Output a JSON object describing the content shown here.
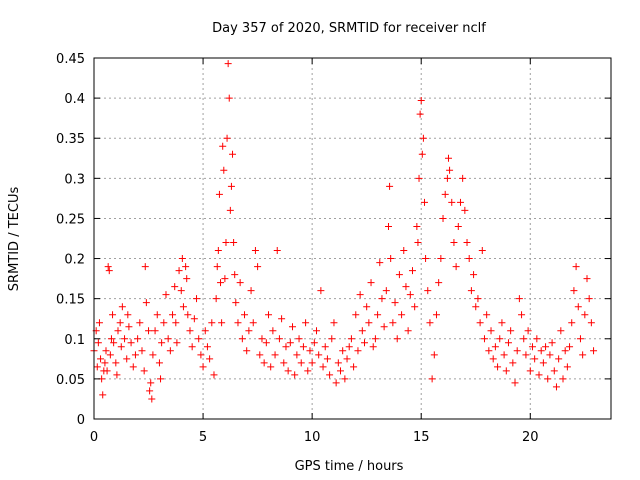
{
  "chart_data": {
    "type": "scatter",
    "title": "Day 357 of 2020, SRMTID for receiver nclf",
    "xlabel": "GPS time / hours",
    "ylabel": "SRMTID / TECUs",
    "xlim": [
      0,
      23.7
    ],
    "ylim": [
      0,
      0.45
    ],
    "xticks": [
      0,
      5,
      10,
      15,
      20
    ],
    "xtick_labels": [
      "0",
      "5",
      "10",
      "15",
      "20"
    ],
    "yticks": [
      0,
      0.05,
      0.1,
      0.15,
      0.2,
      0.25,
      0.3,
      0.35,
      0.4,
      0.45
    ],
    "ytick_labels": [
      "0",
      "0.05",
      "0.1",
      "0.15",
      "0.2",
      "0.25",
      "0.3",
      "0.35",
      "0.4",
      "0.45"
    ],
    "grid": true,
    "marker": "+",
    "color": "#ff0000",
    "series": [
      {
        "name": "SRMTID",
        "points": [
          [
            0.0,
            0.085
          ],
          [
            0.1,
            0.11
          ],
          [
            0.15,
            0.065
          ],
          [
            0.2,
            0.095
          ],
          [
            0.25,
            0.12
          ],
          [
            0.3,
            0.075
          ],
          [
            0.35,
            0.05
          ],
          [
            0.4,
            0.03
          ],
          [
            0.45,
            0.06
          ],
          [
            0.5,
            0.07
          ],
          [
            0.55,
            0.085
          ],
          [
            0.6,
            0.06
          ],
          [
            0.65,
            0.19
          ],
          [
            0.7,
            0.185
          ],
          [
            0.75,
            0.08
          ],
          [
            0.8,
            0.1
          ],
          [
            0.85,
            0.13
          ],
          [
            0.9,
            0.095
          ],
          [
            1.0,
            0.07
          ],
          [
            1.05,
            0.055
          ],
          [
            1.1,
            0.11
          ],
          [
            1.2,
            0.12
          ],
          [
            1.25,
            0.09
          ],
          [
            1.3,
            0.14
          ],
          [
            1.4,
            0.1
          ],
          [
            1.5,
            0.075
          ],
          [
            1.55,
            0.13
          ],
          [
            1.6,
            0.115
          ],
          [
            1.7,
            0.095
          ],
          [
            1.8,
            0.065
          ],
          [
            1.9,
            0.08
          ],
          [
            2.0,
            0.1
          ],
          [
            2.1,
            0.12
          ],
          [
            2.2,
            0.085
          ],
          [
            2.3,
            0.06
          ],
          [
            2.35,
            0.19
          ],
          [
            2.4,
            0.145
          ],
          [
            2.5,
            0.11
          ],
          [
            2.55,
            0.035
          ],
          [
            2.6,
            0.045
          ],
          [
            2.65,
            0.025
          ],
          [
            2.7,
            0.08
          ],
          [
            2.8,
            0.11
          ],
          [
            2.9,
            0.13
          ],
          [
            3.0,
            0.07
          ],
          [
            3.05,
            0.05
          ],
          [
            3.1,
            0.095
          ],
          [
            3.2,
            0.12
          ],
          [
            3.3,
            0.155
          ],
          [
            3.4,
            0.1
          ],
          [
            3.5,
            0.085
          ],
          [
            3.6,
            0.13
          ],
          [
            3.7,
            0.165
          ],
          [
            3.75,
            0.12
          ],
          [
            3.8,
            0.095
          ],
          [
            3.9,
            0.185
          ],
          [
            4.0,
            0.16
          ],
          [
            4.05,
            0.2
          ],
          [
            4.1,
            0.14
          ],
          [
            4.2,
            0.19
          ],
          [
            4.25,
            0.175
          ],
          [
            4.3,
            0.13
          ],
          [
            4.4,
            0.11
          ],
          [
            4.5,
            0.09
          ],
          [
            4.6,
            0.125
          ],
          [
            4.7,
            0.15
          ],
          [
            4.8,
            0.1
          ],
          [
            4.9,
            0.08
          ],
          [
            5.0,
            0.065
          ],
          [
            5.1,
            0.11
          ],
          [
            5.2,
            0.09
          ],
          [
            5.3,
            0.075
          ],
          [
            5.4,
            0.12
          ],
          [
            5.5,
            0.055
          ],
          [
            5.6,
            0.15
          ],
          [
            5.65,
            0.19
          ],
          [
            5.7,
            0.21
          ],
          [
            5.75,
            0.28
          ],
          [
            5.8,
            0.17
          ],
          [
            5.85,
            0.12
          ],
          [
            5.9,
            0.34
          ],
          [
            5.95,
            0.31
          ],
          [
            6.0,
            0.175
          ],
          [
            6.05,
            0.22
          ],
          [
            6.1,
            0.35
          ],
          [
            6.15,
            0.443
          ],
          [
            6.2,
            0.4
          ],
          [
            6.25,
            0.26
          ],
          [
            6.3,
            0.29
          ],
          [
            6.35,
            0.33
          ],
          [
            6.4,
            0.22
          ],
          [
            6.45,
            0.18
          ],
          [
            6.5,
            0.145
          ],
          [
            6.6,
            0.12
          ],
          [
            6.7,
            0.17
          ],
          [
            6.8,
            0.1
          ],
          [
            6.9,
            0.13
          ],
          [
            7.0,
            0.085
          ],
          [
            7.1,
            0.11
          ],
          [
            7.2,
            0.16
          ],
          [
            7.3,
            0.12
          ],
          [
            7.4,
            0.21
          ],
          [
            7.5,
            0.19
          ],
          [
            7.6,
            0.08
          ],
          [
            7.7,
            0.1
          ],
          [
            7.8,
            0.07
          ],
          [
            7.9,
            0.095
          ],
          [
            8.0,
            0.13
          ],
          [
            8.1,
            0.065
          ],
          [
            8.2,
            0.11
          ],
          [
            8.3,
            0.08
          ],
          [
            8.4,
            0.21
          ],
          [
            8.5,
            0.1
          ],
          [
            8.6,
            0.125
          ],
          [
            8.7,
            0.07
          ],
          [
            8.8,
            0.09
          ],
          [
            8.9,
            0.06
          ],
          [
            9.0,
            0.095
          ],
          [
            9.1,
            0.115
          ],
          [
            9.2,
            0.055
          ],
          [
            9.3,
            0.08
          ],
          [
            9.4,
            0.1
          ],
          [
            9.5,
            0.07
          ],
          [
            9.6,
            0.09
          ],
          [
            9.7,
            0.12
          ],
          [
            9.8,
            0.06
          ],
          [
            9.9,
            0.085
          ],
          [
            10.0,
            0.07
          ],
          [
            10.1,
            0.095
          ],
          [
            10.2,
            0.11
          ],
          [
            10.3,
            0.08
          ],
          [
            10.4,
            0.16
          ],
          [
            10.5,
            0.065
          ],
          [
            10.6,
            0.09
          ],
          [
            10.7,
            0.075
          ],
          [
            10.8,
            0.055
          ],
          [
            10.9,
            0.1
          ],
          [
            11.0,
            0.12
          ],
          [
            11.1,
            0.045
          ],
          [
            11.2,
            0.07
          ],
          [
            11.3,
            0.06
          ],
          [
            11.4,
            0.085
          ],
          [
            11.5,
            0.05
          ],
          [
            11.6,
            0.075
          ],
          [
            11.7,
            0.09
          ],
          [
            11.8,
            0.1
          ],
          [
            11.9,
            0.065
          ],
          [
            12.0,
            0.13
          ],
          [
            12.1,
            0.085
          ],
          [
            12.2,
            0.155
          ],
          [
            12.3,
            0.11
          ],
          [
            12.4,
            0.095
          ],
          [
            12.5,
            0.14
          ],
          [
            12.6,
            0.12
          ],
          [
            12.7,
            0.17
          ],
          [
            12.8,
            0.09
          ],
          [
            12.9,
            0.1
          ],
          [
            13.0,
            0.13
          ],
          [
            13.1,
            0.195
          ],
          [
            13.2,
            0.15
          ],
          [
            13.3,
            0.115
          ],
          [
            13.4,
            0.16
          ],
          [
            13.5,
            0.24
          ],
          [
            13.55,
            0.29
          ],
          [
            13.6,
            0.2
          ],
          [
            13.7,
            0.12
          ],
          [
            13.8,
            0.145
          ],
          [
            13.9,
            0.1
          ],
          [
            14.0,
            0.18
          ],
          [
            14.1,
            0.13
          ],
          [
            14.2,
            0.21
          ],
          [
            14.3,
            0.165
          ],
          [
            14.4,
            0.11
          ],
          [
            14.5,
            0.155
          ],
          [
            14.6,
            0.185
          ],
          [
            14.7,
            0.14
          ],
          [
            14.8,
            0.24
          ],
          [
            14.85,
            0.22
          ],
          [
            14.9,
            0.3
          ],
          [
            14.95,
            0.38
          ],
          [
            15.0,
            0.397
          ],
          [
            15.05,
            0.33
          ],
          [
            15.1,
            0.35
          ],
          [
            15.15,
            0.27
          ],
          [
            15.2,
            0.2
          ],
          [
            15.3,
            0.16
          ],
          [
            15.4,
            0.12
          ],
          [
            15.5,
            0.05
          ],
          [
            15.6,
            0.08
          ],
          [
            15.7,
            0.13
          ],
          [
            15.8,
            0.17
          ],
          [
            15.9,
            0.2
          ],
          [
            16.0,
            0.25
          ],
          [
            16.1,
            0.28
          ],
          [
            16.2,
            0.3
          ],
          [
            16.25,
            0.325
          ],
          [
            16.3,
            0.31
          ],
          [
            16.4,
            0.27
          ],
          [
            16.5,
            0.22
          ],
          [
            16.6,
            0.19
          ],
          [
            16.7,
            0.24
          ],
          [
            16.8,
            0.27
          ],
          [
            16.9,
            0.3
          ],
          [
            17.0,
            0.26
          ],
          [
            17.1,
            0.22
          ],
          [
            17.2,
            0.2
          ],
          [
            17.3,
            0.16
          ],
          [
            17.4,
            0.18
          ],
          [
            17.5,
            0.14
          ],
          [
            17.6,
            0.15
          ],
          [
            17.7,
            0.12
          ],
          [
            17.8,
            0.21
          ],
          [
            17.9,
            0.1
          ],
          [
            18.0,
            0.13
          ],
          [
            18.1,
            0.085
          ],
          [
            18.2,
            0.11
          ],
          [
            18.3,
            0.075
          ],
          [
            18.4,
            0.09
          ],
          [
            18.5,
            0.065
          ],
          [
            18.6,
            0.1
          ],
          [
            18.7,
            0.12
          ],
          [
            18.8,
            0.08
          ],
          [
            18.9,
            0.06
          ],
          [
            19.0,
            0.095
          ],
          [
            19.1,
            0.11
          ],
          [
            19.2,
            0.07
          ],
          [
            19.3,
            0.045
          ],
          [
            19.4,
            0.085
          ],
          [
            19.5,
            0.15
          ],
          [
            19.6,
            0.13
          ],
          [
            19.7,
            0.1
          ],
          [
            19.8,
            0.08
          ],
          [
            19.9,
            0.11
          ],
          [
            20.0,
            0.06
          ],
          [
            20.1,
            0.09
          ],
          [
            20.2,
            0.075
          ],
          [
            20.3,
            0.1
          ],
          [
            20.4,
            0.055
          ],
          [
            20.5,
            0.085
          ],
          [
            20.6,
            0.07
          ],
          [
            20.7,
            0.09
          ],
          [
            20.8,
            0.05
          ],
          [
            20.9,
            0.08
          ],
          [
            21.0,
            0.095
          ],
          [
            21.1,
            0.06
          ],
          [
            21.2,
            0.04
          ],
          [
            21.3,
            0.075
          ],
          [
            21.4,
            0.11
          ],
          [
            21.5,
            0.05
          ],
          [
            21.6,
            0.085
          ],
          [
            21.7,
            0.065
          ],
          [
            21.8,
            0.09
          ],
          [
            21.9,
            0.12
          ],
          [
            22.0,
            0.16
          ],
          [
            22.1,
            0.19
          ],
          [
            22.2,
            0.14
          ],
          [
            22.3,
            0.1
          ],
          [
            22.4,
            0.08
          ],
          [
            22.5,
            0.13
          ],
          [
            22.6,
            0.175
          ],
          [
            22.7,
            0.15
          ],
          [
            22.8,
            0.12
          ],
          [
            22.9,
            0.085
          ]
        ]
      }
    ]
  }
}
